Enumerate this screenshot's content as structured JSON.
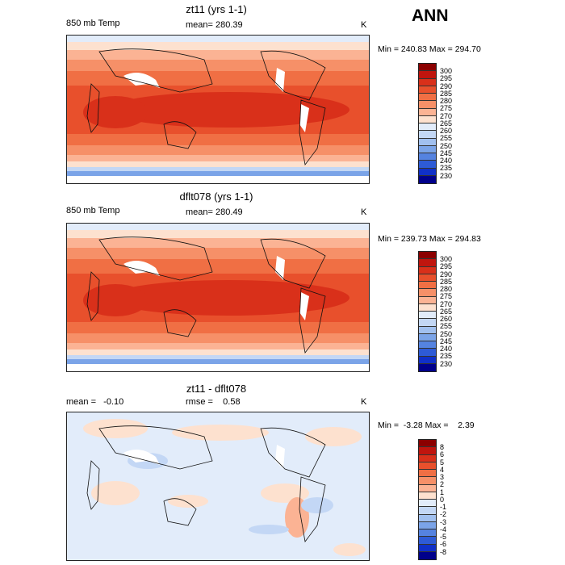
{
  "header": {
    "season": "ANN"
  },
  "panels": [
    {
      "title": "zt11 (yrs 1-1)",
      "left_label": "850 mb Temp",
      "center_label": "mean= 280.39",
      "units": "K",
      "minmax": "Min = 240.83 Max = 294.70",
      "colorbar": {
        "labels": [
          "300",
          "295",
          "290",
          "285",
          "280",
          "275",
          "270",
          "265",
          "260",
          "255",
          "250",
          "245",
          "240",
          "235",
          "230"
        ],
        "colors": [
          "#8b0000",
          "#c0150e",
          "#d9301a",
          "#e8502c",
          "#f06f44",
          "#f69068",
          "#fbb394",
          "#fde1cf",
          "#e2ecfa",
          "#c3d7f5",
          "#a1c0ef",
          "#7ba4e8",
          "#5583e0",
          "#2e5bd6",
          "#1030c8",
          "#00008b"
        ]
      }
    },
    {
      "title": "dflt078 (yrs 1-1)",
      "left_label": "850 mb Temp",
      "center_label": "mean= 280.49",
      "units": "K",
      "minmax": "Min = 239.73 Max = 294.83",
      "colorbar": {
        "labels": [
          "300",
          "295",
          "290",
          "285",
          "280",
          "275",
          "270",
          "265",
          "260",
          "255",
          "250",
          "245",
          "240",
          "235",
          "230"
        ],
        "colors": [
          "#8b0000",
          "#c0150e",
          "#d9301a",
          "#e8502c",
          "#f06f44",
          "#f69068",
          "#fbb394",
          "#fde1cf",
          "#e2ecfa",
          "#c3d7f5",
          "#a1c0ef",
          "#7ba4e8",
          "#5583e0",
          "#2e5bd6",
          "#1030c8",
          "#00008b"
        ]
      }
    },
    {
      "title": "zt11 - dflt078",
      "left_label": "mean =   -0.10",
      "center_label": "rmse =    0.58",
      "units": "K",
      "minmax": "Min =  -3.28 Max =    2.39",
      "colorbar": {
        "labels": [
          "8",
          "6",
          "5",
          "4",
          "3",
          "2",
          "1",
          "0",
          "-1",
          "-2",
          "-3",
          "-4",
          "-5",
          "-6",
          "-8"
        ],
        "colors": [
          "#8b0000",
          "#c0150e",
          "#d9301a",
          "#e8502c",
          "#f06f44",
          "#f69068",
          "#fbb394",
          "#fde1cf",
          "#e2ecfa",
          "#c3d7f5",
          "#a1c0ef",
          "#7ba4e8",
          "#5583e0",
          "#2e5bd6",
          "#1030c8",
          "#00008b"
        ]
      }
    }
  ]
}
